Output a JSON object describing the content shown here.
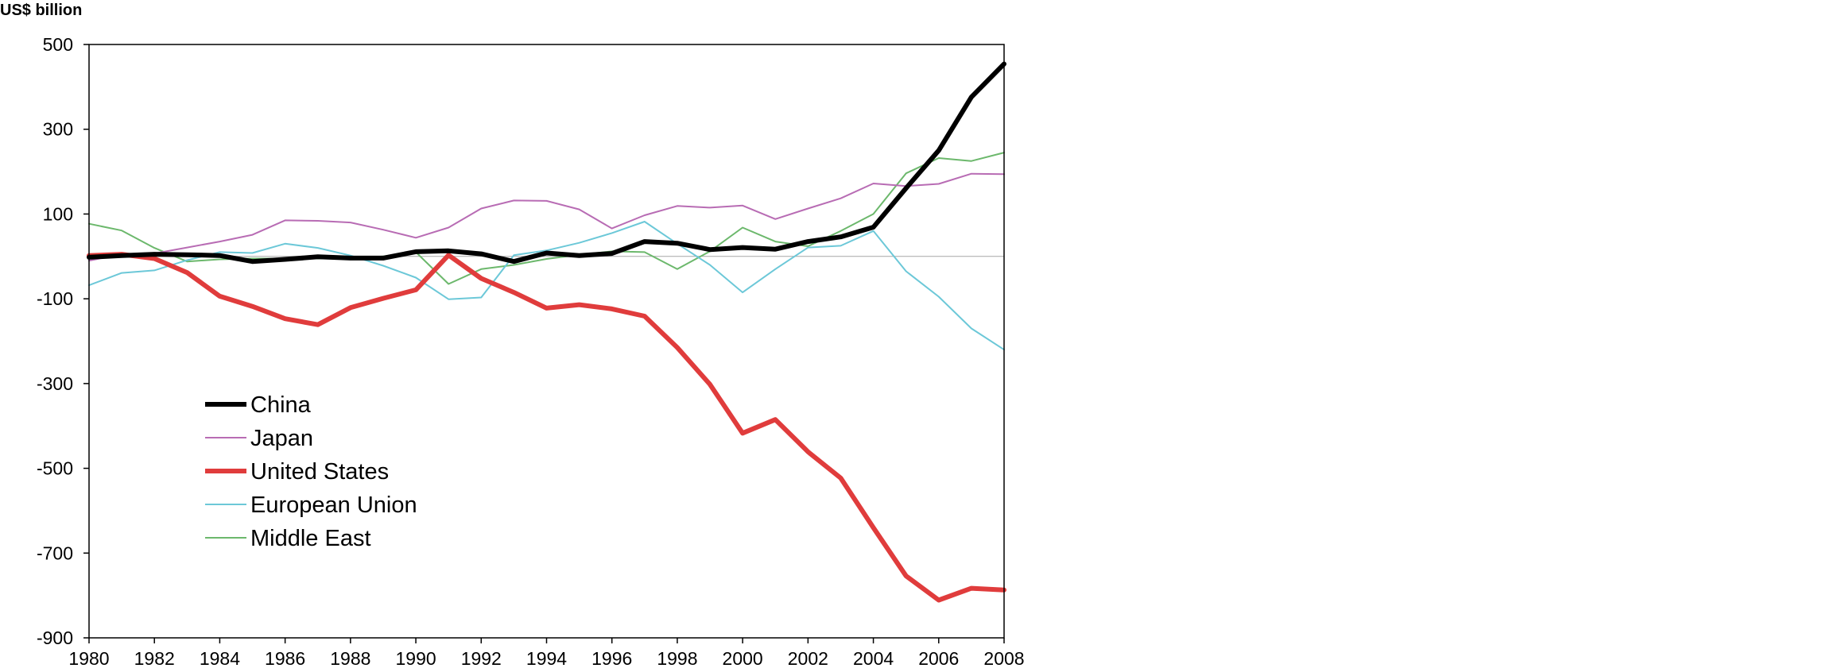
{
  "chart_data": {
    "type": "line",
    "ylabel": "US$ billion",
    "xlabel": "",
    "title": "",
    "xlim": [
      1980,
      2008
    ],
    "ylim": [
      -900,
      500
    ],
    "y_ticks": [
      500,
      300,
      100,
      -100,
      -300,
      -500,
      -700,
      -900
    ],
    "x_ticks": [
      1980,
      1982,
      1984,
      1986,
      1988,
      1990,
      1992,
      1994,
      1996,
      1998,
      2000,
      2002,
      2004,
      2006,
      2008
    ],
    "reference_line": 0,
    "grid": false,
    "legend_position": "lower-left",
    "x": [
      1980,
      1981,
      1982,
      1983,
      1984,
      1985,
      1986,
      1987,
      1988,
      1989,
      1990,
      1991,
      1992,
      1993,
      1994,
      1995,
      1996,
      1997,
      1998,
      1999,
      2000,
      2001,
      2002,
      2003,
      2004,
      2005,
      2006,
      2007,
      2008
    ],
    "series": [
      {
        "name": "China",
        "color": "#000000",
        "width": 6,
        "values": [
          -2,
          2,
          5,
          4,
          2,
          -12,
          -7,
          -1,
          -4,
          -4,
          11,
          13,
          6,
          -12,
          8,
          2,
          7,
          35,
          31,
          16,
          21,
          17,
          35,
          46,
          69,
          161,
          250,
          376,
          454
        ]
      },
      {
        "name": "Japan",
        "color": "#b86cb4",
        "width": 2,
        "values": [
          -10,
          5,
          7,
          21,
          35,
          51,
          85,
          84,
          80,
          63,
          44,
          68,
          113,
          132,
          131,
          111,
          66,
          97,
          119,
          115,
          120,
          88,
          113,
          137,
          172,
          166,
          171,
          195,
          194
        ]
      },
      {
        "name": "United States",
        "color": "#e03c3c",
        "width": 6,
        "values": [
          2,
          5,
          -5,
          -38,
          -94,
          -118,
          -147,
          -161,
          -121,
          -99,
          -79,
          3,
          -52,
          -85,
          -122,
          -114,
          -124,
          -141,
          -215,
          -302,
          -417,
          -385,
          -461,
          -523,
          -640,
          -754,
          -811,
          -783,
          -787
        ]
      },
      {
        "name": "European Union",
        "color": "#6cc8d8",
        "width": 2,
        "values": [
          -68,
          -39,
          -33,
          -9,
          10,
          8,
          30,
          20,
          2,
          -22,
          -50,
          -101,
          -97,
          3,
          14,
          32,
          55,
          82,
          30,
          -20,
          -85,
          -30,
          21,
          25,
          60,
          -35,
          -95,
          -170,
          -220
        ]
      },
      {
        "name": "Middle East",
        "color": "#6cb86c",
        "width": 2,
        "values": [
          77,
          61,
          20,
          -12,
          -7,
          -5,
          -5,
          -5,
          -5,
          0,
          10,
          -65,
          -30,
          -20,
          -6,
          4,
          12,
          10,
          -30,
          12,
          68,
          35,
          24,
          60,
          100,
          196,
          232,
          225,
          245
        ]
      }
    ]
  }
}
